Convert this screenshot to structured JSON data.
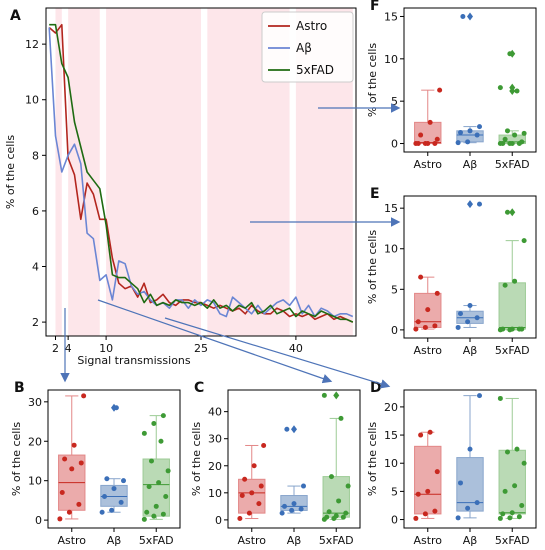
{
  "colors": {
    "astro": "#b3261e",
    "abeta": "#6b86d4",
    "fad": "#1f6b12",
    "astro_box": "#e38787",
    "abeta_box": "#88a5cc",
    "fad_box": "#9ccb95",
    "astro_pt": "#c8281f",
    "abeta_pt": "#3b6fb8",
    "fad_pt": "#3e9a35",
    "shade": "#fde6ea",
    "arrow": "#4e74b8"
  },
  "chart_data": [
    {
      "id": "A",
      "type": "line",
      "panel_label": "A",
      "xlabel": "Signal transmissions",
      "ylabel": "% of the cells",
      "xlim": [
        0.5,
        49.5
      ],
      "ylim": [
        1.5,
        13.3
      ],
      "xticks": [
        2,
        4,
        10,
        25,
        40
      ],
      "yticks": [
        2,
        4,
        6,
        8,
        10,
        12
      ],
      "legend_position": "top-right",
      "shaded_bands": [
        [
          2,
          3
        ],
        [
          4,
          9
        ],
        [
          10,
          25
        ],
        [
          26,
          39
        ],
        [
          40,
          49
        ]
      ],
      "series": [
        {
          "name": "Astro",
          "color_key": "astro",
          "x": [
            1,
            2,
            3,
            4,
            5,
            6,
            7,
            8,
            9,
            10,
            11,
            12,
            13,
            14,
            15,
            16,
            17,
            18,
            19,
            20,
            21,
            22,
            23,
            24,
            25,
            26,
            27,
            28,
            29,
            30,
            31,
            32,
            33,
            34,
            35,
            36,
            37,
            38,
            39,
            40,
            41,
            42,
            43,
            44,
            45,
            46,
            47,
            48,
            49
          ],
          "y": [
            12.6,
            12.4,
            12.7,
            7.9,
            7.3,
            5.7,
            7.0,
            6.6,
            5.7,
            5.7,
            4.3,
            3.4,
            3.2,
            3.3,
            2.9,
            3.4,
            2.7,
            2.8,
            3.0,
            2.7,
            2.6,
            2.8,
            2.8,
            2.7,
            2.7,
            2.6,
            2.5,
            2.6,
            2.5,
            2.4,
            2.5,
            2.3,
            2.6,
            2.4,
            2.3,
            2.3,
            2.5,
            2.4,
            2.2,
            2.3,
            2.2,
            2.3,
            2.1,
            2.2,
            2.3,
            2.1,
            2.2,
            2.1,
            2.0
          ]
        },
        {
          "name": "Aβ",
          "color_key": "abeta",
          "x": [
            1,
            2,
            3,
            4,
            5,
            6,
            7,
            8,
            9,
            10,
            11,
            12,
            13,
            14,
            15,
            16,
            17,
            18,
            19,
            20,
            21,
            22,
            23,
            24,
            25,
            26,
            27,
            28,
            29,
            30,
            31,
            32,
            33,
            34,
            35,
            36,
            37,
            38,
            39,
            40,
            41,
            42,
            43,
            44,
            45,
            46,
            47,
            48,
            49
          ],
          "y": [
            12.6,
            8.7,
            7.4,
            8.0,
            8.4,
            7.7,
            5.2,
            5.0,
            3.5,
            3.7,
            2.8,
            4.2,
            4.1,
            3.3,
            3.0,
            3.1,
            2.8,
            2.6,
            2.7,
            2.5,
            2.8,
            2.8,
            2.5,
            2.8,
            2.6,
            2.8,
            2.7,
            2.3,
            2.2,
            2.9,
            2.7,
            2.5,
            2.3,
            2.6,
            2.3,
            2.5,
            2.7,
            2.8,
            2.6,
            2.9,
            2.3,
            2.6,
            2.2,
            2.5,
            2.4,
            2.2,
            2.3,
            2.3,
            2.2
          ]
        },
        {
          "name": "5xFAD",
          "color_key": "fad",
          "x": [
            1,
            2,
            3,
            4,
            5,
            6,
            7,
            8,
            9,
            10,
            11,
            12,
            13,
            14,
            15,
            16,
            17,
            18,
            19,
            20,
            21,
            22,
            23,
            24,
            25,
            26,
            27,
            28,
            29,
            30,
            31,
            32,
            33,
            34,
            35,
            36,
            37,
            38,
            39,
            40,
            41,
            42,
            43,
            44,
            45,
            46,
            47,
            48,
            49
          ],
          "y": [
            12.7,
            12.7,
            11.3,
            10.8,
            9.2,
            8.3,
            7.4,
            7.1,
            6.8,
            5.5,
            3.7,
            3.6,
            3.6,
            3.4,
            3.2,
            2.7,
            3.0,
            2.6,
            2.7,
            2.6,
            2.8,
            2.7,
            2.7,
            2.6,
            2.7,
            2.5,
            2.8,
            2.5,
            2.6,
            2.4,
            2.6,
            2.5,
            2.7,
            2.3,
            2.4,
            2.6,
            2.3,
            2.4,
            2.5,
            2.2,
            2.4,
            2.3,
            2.2,
            2.4,
            2.3,
            2.2,
            2.1,
            2.1,
            2.0
          ]
        }
      ]
    },
    {
      "id": "B",
      "type": "box",
      "panel_label": "B",
      "ylabel": "% of the cells",
      "categories": [
        "Astro",
        "Aβ",
        "5xFAD"
      ],
      "ylim": [
        -2,
        33
      ],
      "yticks": [
        0,
        10,
        20,
        30
      ],
      "boxes": [
        {
          "q1": 2.5,
          "median": 9.5,
          "q3": 16.5,
          "whisker_low": 0.3,
          "whisker_high": 31.5,
          "fliers": []
        },
        {
          "q1": 3.5,
          "median": 6.0,
          "q3": 8.8,
          "whisker_low": 2.0,
          "whisker_high": 10.5,
          "fliers": [
            28.5
          ]
        },
        {
          "q1": 1.0,
          "median": 9.0,
          "q3": 15.5,
          "whisker_low": 0.2,
          "whisker_high": 26.5,
          "fliers": []
        }
      ],
      "points": [
        [
          0.3,
          2.0,
          4.0,
          7.0,
          13.0,
          14.5,
          15.5,
          19.0,
          31.5
        ],
        [
          2.0,
          2.5,
          4.5,
          6.0,
          8.0,
          10.0,
          10.5,
          28.5
        ],
        [
          0.2,
          1.0,
          1.5,
          2.0,
          3.5,
          6.0,
          8.5,
          9.5,
          12.5,
          15.0,
          20.0,
          22.0,
          24.5,
          26.5
        ]
      ]
    },
    {
      "id": "C",
      "type": "box",
      "panel_label": "C",
      "ylabel": "% of the cells",
      "categories": [
        "Astro",
        "Aβ",
        "5xFAD"
      ],
      "ylim": [
        -3,
        48
      ],
      "yticks": [
        0,
        10,
        20,
        30,
        40
      ],
      "boxes": [
        {
          "q1": 2.5,
          "median": 10.0,
          "q3": 15.0,
          "whisker_low": 0.5,
          "whisker_high": 27.5,
          "fliers": []
        },
        {
          "q1": 3.5,
          "median": 5.0,
          "q3": 9.0,
          "whisker_low": 2.5,
          "whisker_high": 12.5,
          "fliers": [
            33.5
          ]
        },
        {
          "q1": 1.0,
          "median": 2.5,
          "q3": 16.0,
          "whisker_low": 0.2,
          "whisker_high": 37.5,
          "fliers": [
            46.0
          ]
        }
      ],
      "points": [
        [
          0.5,
          2.5,
          6.0,
          9.0,
          10.0,
          12.5,
          15.0,
          20.0,
          27.5
        ],
        [
          2.5,
          3.5,
          4.0,
          5.0,
          6.0,
          12.5,
          33.5
        ],
        [
          0.2,
          0.5,
          1.0,
          1.0,
          1.5,
          2.5,
          3.0,
          7.0,
          12.5,
          16.0,
          37.5,
          46.0
        ]
      ]
    },
    {
      "id": "D",
      "type": "box",
      "panel_label": "D",
      "ylabel": "% of the cells",
      "categories": [
        "Astro",
        "Aβ",
        "5xFAD"
      ],
      "ylim": [
        -1.5,
        23
      ],
      "yticks": [
        0,
        5,
        10,
        15,
        20
      ],
      "boxes": [
        {
          "q1": 1.0,
          "median": 4.5,
          "q3": 13.0,
          "whisker_low": 0.2,
          "whisker_high": 15.5,
          "fliers": []
        },
        {
          "q1": 1.5,
          "median": 3.0,
          "q3": 11.0,
          "whisker_low": 0.3,
          "whisker_high": 22.0,
          "fliers": []
        },
        {
          "q1": 1.0,
          "median": 1.2,
          "q3": 12.3,
          "whisker_low": 0.2,
          "whisker_high": 21.5,
          "fliers": []
        }
      ],
      "points": [
        [
          0.2,
          1.0,
          1.5,
          4.5,
          5.0,
          8.5,
          15.0,
          15.5
        ],
        [
          0.3,
          2.0,
          3.0,
          6.5,
          12.5,
          22.0
        ],
        [
          0.2,
          0.3,
          0.5,
          1.0,
          1.2,
          2.5,
          5.0,
          6.0,
          10.0,
          12.0,
          12.5,
          21.5
        ]
      ]
    },
    {
      "id": "E",
      "type": "box",
      "panel_label": "E",
      "ylabel": "% of the cells",
      "categories": [
        "Astro",
        "Aβ",
        "5xFAD"
      ],
      "ylim": [
        -1,
        16.5
      ],
      "yticks": [
        0,
        5,
        10,
        15
      ],
      "boxes": [
        {
          "q1": 0.3,
          "median": 1.0,
          "q3": 4.5,
          "whisker_low": 0.1,
          "whisker_high": 6.5,
          "fliers": []
        },
        {
          "q1": 0.8,
          "median": 1.5,
          "q3": 2.3,
          "whisker_low": 0.3,
          "whisker_high": 3.0,
          "fliers": [
            15.5
          ]
        },
        {
          "q1": 0.1,
          "median": 0.3,
          "q3": 5.8,
          "whisker_low": 0.0,
          "whisker_high": 11.0,
          "fliers": [
            14.5
          ]
        }
      ],
      "points": [
        [
          0.1,
          0.3,
          0.5,
          1.0,
          2.5,
          4.5,
          6.5
        ],
        [
          0.3,
          1.0,
          1.5,
          2.0,
          3.0,
          15.5
        ],
        [
          0.0,
          0.0,
          0.1,
          0.1,
          0.1,
          0.1,
          5.5,
          6.0,
          11.0,
          14.5
        ]
      ]
    },
    {
      "id": "F",
      "type": "box",
      "panel_label": "F",
      "ylabel": "% of the cells",
      "categories": [
        "Astro",
        "Aβ",
        "5xFAD"
      ],
      "ylim": [
        -1,
        16
      ],
      "yticks": [
        0,
        5,
        10,
        15
      ],
      "boxes": [
        {
          "q1": 0.0,
          "median": 0.1,
          "q3": 2.5,
          "whisker_low": 0.0,
          "whisker_high": 6.3,
          "fliers": []
        },
        {
          "q1": 0.2,
          "median": 1.0,
          "q3": 1.5,
          "whisker_low": 0.1,
          "whisker_high": 2.0,
          "fliers": [
            15.0
          ]
        },
        {
          "q1": 0.0,
          "median": 0.2,
          "q3": 1.0,
          "whisker_low": 0.0,
          "whisker_high": 1.5,
          "fliers": [
            6.2,
            6.6,
            10.6
          ]
        }
      ],
      "points": [
        [
          0.0,
          0.0,
          0.0,
          0.0,
          0.0,
          0.5,
          1.0,
          2.5,
          6.3
        ],
        [
          0.1,
          0.2,
          1.0,
          1.3,
          1.5,
          2.0,
          15.0
        ],
        [
          0.0,
          0.0,
          0.0,
          0.0,
          0.0,
          0.2,
          0.5,
          1.0,
          1.2,
          1.5,
          6.2,
          6.6,
          10.6
        ]
      ]
    }
  ]
}
